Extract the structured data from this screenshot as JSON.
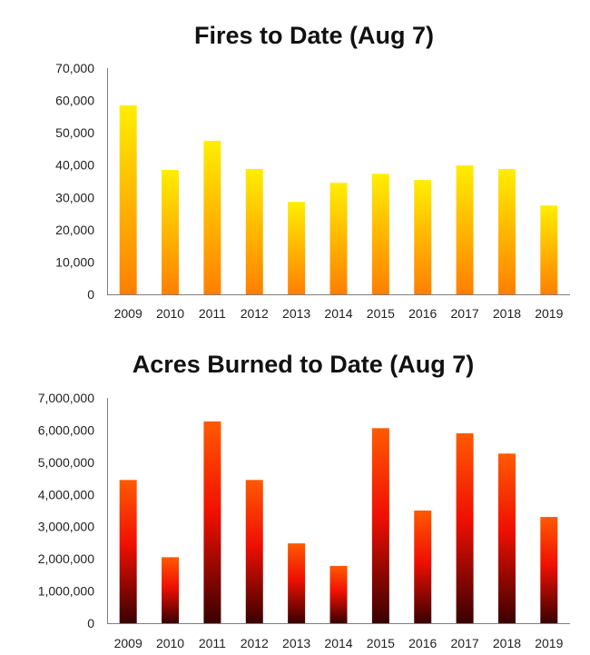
{
  "chart_data": [
    {
      "type": "bar",
      "title": "Fires to Date (Aug 7)",
      "categories": [
        "2009",
        "2010",
        "2011",
        "2012",
        "2013",
        "2014",
        "2015",
        "2016",
        "2017",
        "2018",
        "2019"
      ],
      "values": [
        58500,
        38500,
        47500,
        38800,
        28600,
        34500,
        37300,
        35400,
        39900,
        38800,
        27500
      ],
      "ylim": [
        0,
        70000
      ],
      "yticks": [
        0,
        10000,
        20000,
        30000,
        40000,
        50000,
        60000,
        70000
      ],
      "ytick_labels": [
        "0",
        "10,000",
        "20,000",
        "30,000",
        "40,000",
        "50,000",
        "60,000",
        "70,000"
      ],
      "xlabel": "",
      "ylabel": "",
      "grid": false,
      "colors": {
        "top": "#ffee00",
        "bottom": "#ff7f00"
      }
    },
    {
      "type": "bar",
      "title": "Acres Burned to Date (Aug 7)",
      "categories": [
        "2009",
        "2010",
        "2011",
        "2012",
        "2013",
        "2014",
        "2015",
        "2016",
        "2017",
        "2018",
        "2019"
      ],
      "values": [
        4450000,
        2050000,
        6270000,
        4450000,
        2480000,
        1780000,
        6060000,
        3500000,
        5900000,
        5270000,
        3300000
      ],
      "ylim": [
        0,
        7000000
      ],
      "yticks": [
        0,
        1000000,
        2000000,
        3000000,
        4000000,
        5000000,
        6000000,
        7000000
      ],
      "ytick_labels": [
        "0",
        "1,000,000",
        "2,000,000",
        "3,000,000",
        "4,000,000",
        "5,000,000",
        "6,000,000",
        "7,000,000"
      ],
      "xlabel": "",
      "ylabel": "",
      "grid": false,
      "colors": {
        "top": "#ff5a00",
        "middle": "#f01000",
        "bottom": "#3a0000"
      }
    }
  ]
}
